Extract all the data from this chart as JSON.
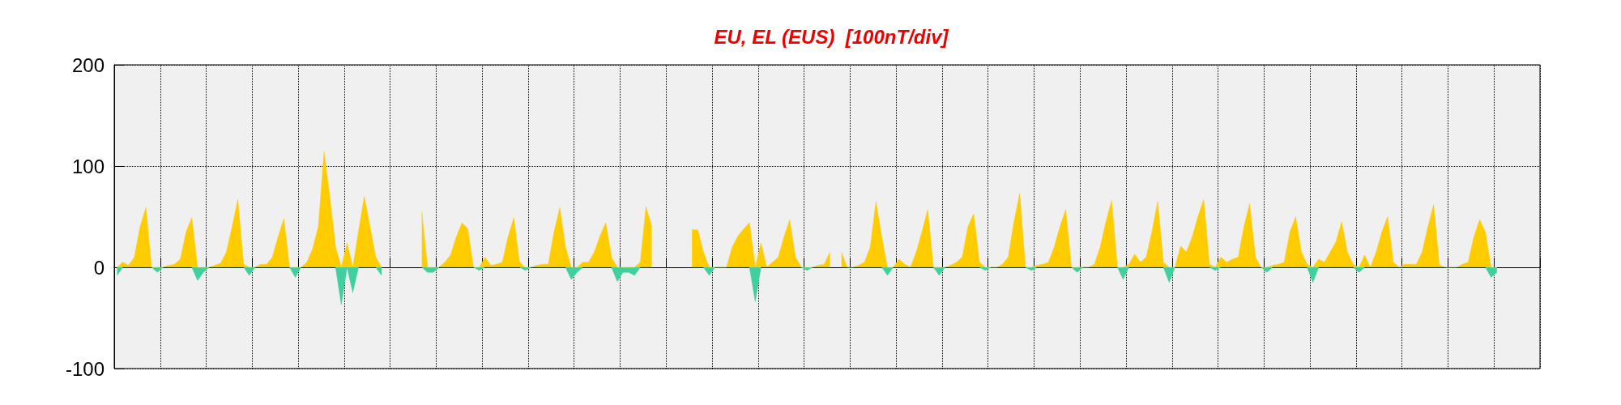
{
  "chart_data": {
    "type": "area",
    "title": "EU, EL (EUS)  [100nT/div]",
    "categories": [
      null,
      null,
      null,
      null,
      null,
      null,
      null,
      null,
      null,
      null,
      null,
      null,
      null,
      null,
      null,
      null,
      null,
      null,
      null,
      null,
      null,
      null,
      null,
      null,
      null,
      null,
      null,
      null,
      null,
      null,
      null,
      null,
      null,
      null,
      null,
      null,
      null,
      null,
      null,
      null,
      null,
      null,
      null,
      null,
      null,
      null,
      null,
      null,
      null,
      null,
      null,
      null,
      null,
      null,
      null,
      null,
      null,
      null,
      null,
      null,
      null,
      null,
      null,
      null,
      null,
      null,
      null,
      null,
      null,
      null,
      null,
      null,
      null,
      null,
      null,
      null,
      null,
      null,
      null,
      null,
      null,
      null,
      null,
      null,
      null,
      null,
      null,
      null,
      null,
      null,
      null,
      null,
      null,
      null,
      null,
      null,
      null,
      null,
      null,
      null,
      null,
      null,
      null,
      null,
      null,
      null,
      null,
      null,
      null,
      null,
      null,
      null,
      null,
      null,
      null,
      null,
      null,
      null,
      null,
      null,
      null,
      null,
      null,
      null,
      null,
      null,
      null,
      null,
      null,
      null,
      null,
      null,
      null,
      null,
      null,
      null,
      null,
      null,
      null,
      null,
      null,
      null,
      null,
      null,
      null,
      null,
      null,
      null,
      null,
      null,
      null,
      null,
      null,
      null,
      null,
      null,
      null,
      null,
      null,
      null,
      null,
      null,
      null,
      null,
      null,
      null,
      null,
      null,
      null,
      null,
      null,
      null,
      null,
      null,
      null,
      null,
      null,
      null,
      null,
      null,
      null,
      null,
      null,
      null,
      null,
      null,
      null,
      null,
      null,
      null,
      null,
      null,
      null,
      null,
      null,
      null,
      null,
      null,
      null,
      null,
      null,
      null,
      null,
      null,
      null,
      null,
      null,
      null,
      null,
      null,
      null,
      null,
      null,
      null,
      null,
      null,
      null,
      null,
      null,
      null,
      null,
      null,
      null,
      null,
      null,
      null,
      null,
      null,
      null,
      null,
      null,
      null,
      null,
      null,
      null,
      null,
      null,
      null,
      null,
      null,
      null,
      null,
      null,
      null,
      null,
      null,
      null,
      null
    ],
    "series": [
      {
        "color": "#ffcc00",
        "values": [
          0,
          5,
          2,
          10,
          40,
          59,
          0,
          0,
          0,
          2,
          3,
          8,
          35,
          49,
          0,
          0,
          0,
          2,
          4,
          15,
          40,
          67,
          3,
          0,
          0,
          3,
          3,
          10,
          30,
          48,
          0,
          0,
          0,
          5,
          18,
          40,
          114,
          70,
          20,
          0,
          24,
          0,
          36,
          70,
          40,
          10,
          0,
          null,
          null,
          null,
          null,
          null,
          null,
          55,
          0,
          0,
          0,
          5,
          12,
          30,
          44,
          38,
          0,
          0,
          10,
          2,
          3,
          5,
          30,
          49,
          5,
          0,
          0,
          2,
          3,
          3,
          35,
          59,
          20,
          0,
          0,
          5,
          5,
          15,
          31,
          44,
          10,
          0,
          0,
          0,
          0,
          5,
          60,
          40,
          null,
          null,
          null,
          null,
          null,
          null,
          37,
          37,
          15,
          0,
          0,
          0,
          0,
          20,
          31,
          38,
          44,
          0,
          24,
          0,
          5,
          10,
          30,
          47,
          10,
          0,
          0,
          0,
          2,
          3,
          15,
          null,
          15,
          0,
          0,
          2,
          5,
          20,
          65,
          30,
          0,
          0,
          8,
          3,
          0,
          15,
          35,
          57,
          0,
          0,
          0,
          2,
          5,
          10,
          40,
          53,
          5,
          0,
          0,
          0,
          3,
          10,
          45,
          73,
          0,
          0,
          2,
          3,
          5,
          20,
          40,
          57,
          0,
          0,
          0,
          0,
          3,
          20,
          45,
          66,
          0,
          0,
          3,
          13,
          5,
          10,
          35,
          65,
          5,
          0,
          0,
          21,
          15,
          30,
          50,
          67,
          3,
          0,
          10,
          5,
          8,
          10,
          40,
          63,
          10,
          0,
          0,
          2,
          3,
          5,
          35,
          50,
          15,
          3,
          0,
          8,
          5,
          15,
          25,
          45,
          15,
          3,
          0,
          12,
          0,
          15,
          35,
          50,
          5,
          0,
          3,
          3,
          3,
          15,
          40,
          62,
          2,
          0,
          0,
          0,
          3,
          5,
          30,
          47,
          35,
          0,
          0,
          null,
          null,
          null,
          null,
          null,
          null,
          null
        ]
      },
      {
        "color": "#40d0a0",
        "values": [
          -8,
          0,
          0,
          0,
          0,
          0,
          0,
          -5,
          0,
          0,
          0,
          0,
          0,
          0,
          -13,
          -5,
          0,
          0,
          0,
          0,
          0,
          0,
          0,
          -8,
          0,
          0,
          0,
          0,
          0,
          0,
          0,
          -10,
          0,
          0,
          0,
          0,
          0,
          0,
          0,
          -37,
          0,
          -25,
          0,
          0,
          0,
          0,
          -8,
          null,
          null,
          null,
          null,
          null,
          null,
          0,
          -5,
          -5,
          0,
          0,
          0,
          0,
          0,
          0,
          0,
          -3,
          0,
          0,
          0,
          0,
          0,
          0,
          0,
          -3,
          0,
          0,
          0,
          0,
          0,
          0,
          0,
          -12,
          -5,
          0,
          0,
          0,
          0,
          0,
          0,
          -14,
          -5,
          -5,
          -8,
          0,
          0,
          0,
          null,
          null,
          null,
          null,
          null,
          null,
          0,
          0,
          0,
          -8,
          0,
          0,
          0,
          0,
          0,
          0,
          0,
          -34,
          0,
          0,
          0,
          0,
          0,
          0,
          0,
          0,
          -3,
          0,
          0,
          0,
          0,
          null,
          0,
          0,
          0,
          0,
          0,
          0,
          0,
          0,
          -8,
          0,
          0,
          0,
          0,
          0,
          0,
          0,
          0,
          -8,
          0,
          0,
          0,
          0,
          0,
          0,
          0,
          -3,
          0,
          0,
          0,
          0,
          0,
          0,
          0,
          -3,
          0,
          0,
          0,
          0,
          0,
          0,
          0,
          -5,
          0,
          0,
          0,
          0,
          0,
          0,
          0,
          -12,
          0,
          0,
          0,
          0,
          0,
          0,
          0,
          -15,
          0,
          0,
          0,
          0,
          0,
          0,
          0,
          -3,
          0,
          0,
          0,
          0,
          0,
          0,
          0,
          0,
          -5,
          0,
          0,
          0,
          0,
          0,
          0,
          0,
          -15,
          0,
          0,
          0,
          0,
          0,
          0,
          0,
          -5,
          0,
          0,
          0,
          0,
          0,
          0,
          0,
          0,
          0,
          0,
          0,
          0,
          0,
          0,
          0,
          0,
          0,
          0,
          0,
          0,
          0,
          0,
          -10,
          -5,
          null,
          null,
          null,
          null,
          null,
          null,
          null
        ]
      }
    ],
    "ylim": [
      -100,
      200
    ],
    "yticks": [
      -100,
      0,
      100,
      200
    ],
    "grid": true,
    "tick_labels": "y"
  }
}
